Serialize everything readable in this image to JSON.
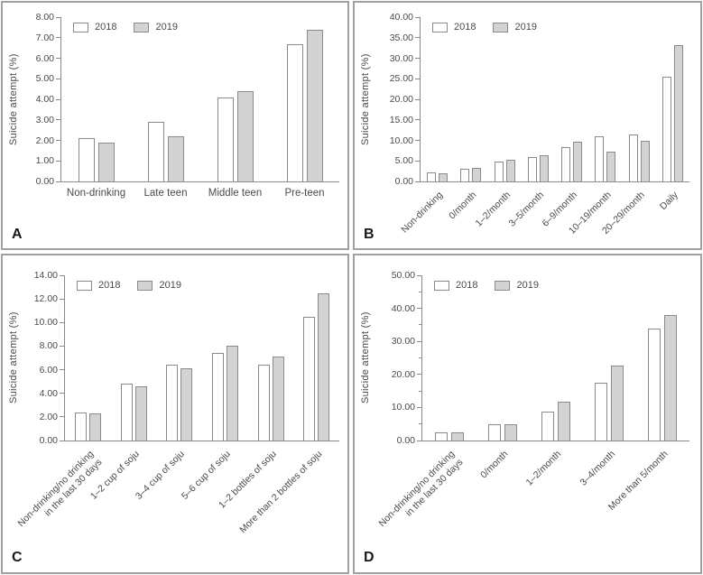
{
  "colors": {
    "bar_2018_fill": "#ffffff",
    "bar_2019_fill": "#d3d3d3",
    "bar_border": "#8a8a8a",
    "axis": "#8a8a8a",
    "text": "#4a4a4a",
    "panel_border": "#a0a0a0",
    "panel_letter": "#1c1818"
  },
  "chart_data": [
    {
      "type": "bar",
      "panel_label": "A",
      "title": "",
      "xlabel": "",
      "ylabel": "Suicide attempt (%)",
      "ylim": [
        0,
        8
      ],
      "ytick_step": 1,
      "tick_decimals": 2,
      "grid": false,
      "legend_position": "top-left",
      "x_label_rotation": 0,
      "categories": [
        "Non-drinking",
        "Late teen",
        "Middle teen",
        "Pre-teen"
      ],
      "series": [
        {
          "name": "2018",
          "values": [
            2.1,
            2.9,
            4.1,
            6.7
          ]
        },
        {
          "name": "2019",
          "values": [
            1.9,
            2.2,
            4.4,
            7.4
          ]
        }
      ]
    },
    {
      "type": "bar",
      "panel_label": "B",
      "title": "",
      "xlabel": "",
      "ylabel": "Suicide attempt (%)",
      "ylim": [
        0,
        40
      ],
      "ytick_step": 5,
      "tick_decimals": 2,
      "grid": false,
      "legend_position": "top-left",
      "x_label_rotation": -45,
      "categories": [
        "Non-drinking",
        "0/month",
        "1–2/month",
        "3–5/month",
        "6–9/month",
        "10–19/month",
        "20–29/month",
        "Daily"
      ],
      "series": [
        {
          "name": "2018",
          "values": [
            2.2,
            3.1,
            4.9,
            5.9,
            8.3,
            11.1,
            11.4,
            25.5
          ]
        },
        {
          "name": "2019",
          "values": [
            2.0,
            3.3,
            5.3,
            6.3,
            9.7,
            7.2,
            10.0,
            33.2
          ]
        }
      ]
    },
    {
      "type": "bar",
      "panel_label": "C",
      "title": "",
      "xlabel": "",
      "ylabel": "Suicide attempt (%)",
      "ylim": [
        0,
        14
      ],
      "ytick_step": 2,
      "tick_decimals": 2,
      "grid": false,
      "legend_position": "top-left",
      "x_label_rotation": -45,
      "categories": [
        "Non-drinking/no drinking\nin the last 30 days",
        "1–2 cup of soju",
        "3–4 cup of soju",
        "5–6 cup of soju",
        "1–2 bottles of soju",
        "More than 2 bottles of soju"
      ],
      "series": [
        {
          "name": "2018",
          "values": [
            2.4,
            4.8,
            6.4,
            7.4,
            6.4,
            10.5
          ]
        },
        {
          "name": "2019",
          "values": [
            2.3,
            4.6,
            6.1,
            8.0,
            7.1,
            12.5
          ]
        }
      ]
    },
    {
      "type": "bar",
      "panel_label": "D",
      "title": "",
      "xlabel": "",
      "ylabel": "Suicide attempt (%)",
      "ylim": [
        0,
        50
      ],
      "ytick_step": 10,
      "minor_tick_step": 5,
      "tick_decimals": 2,
      "grid": false,
      "legend_position": "top-left",
      "x_label_rotation": -45,
      "categories": [
        "Non-drinking/no drinking\nin the last 30 days",
        "0/month",
        "1–2/month",
        "3–4/month",
        "More than 5/month"
      ],
      "series": [
        {
          "name": "2018",
          "values": [
            2.4,
            4.8,
            8.8,
            17.4,
            34.0
          ]
        },
        {
          "name": "2019",
          "values": [
            2.4,
            4.8,
            11.8,
            22.6,
            38.0
          ]
        }
      ]
    }
  ]
}
